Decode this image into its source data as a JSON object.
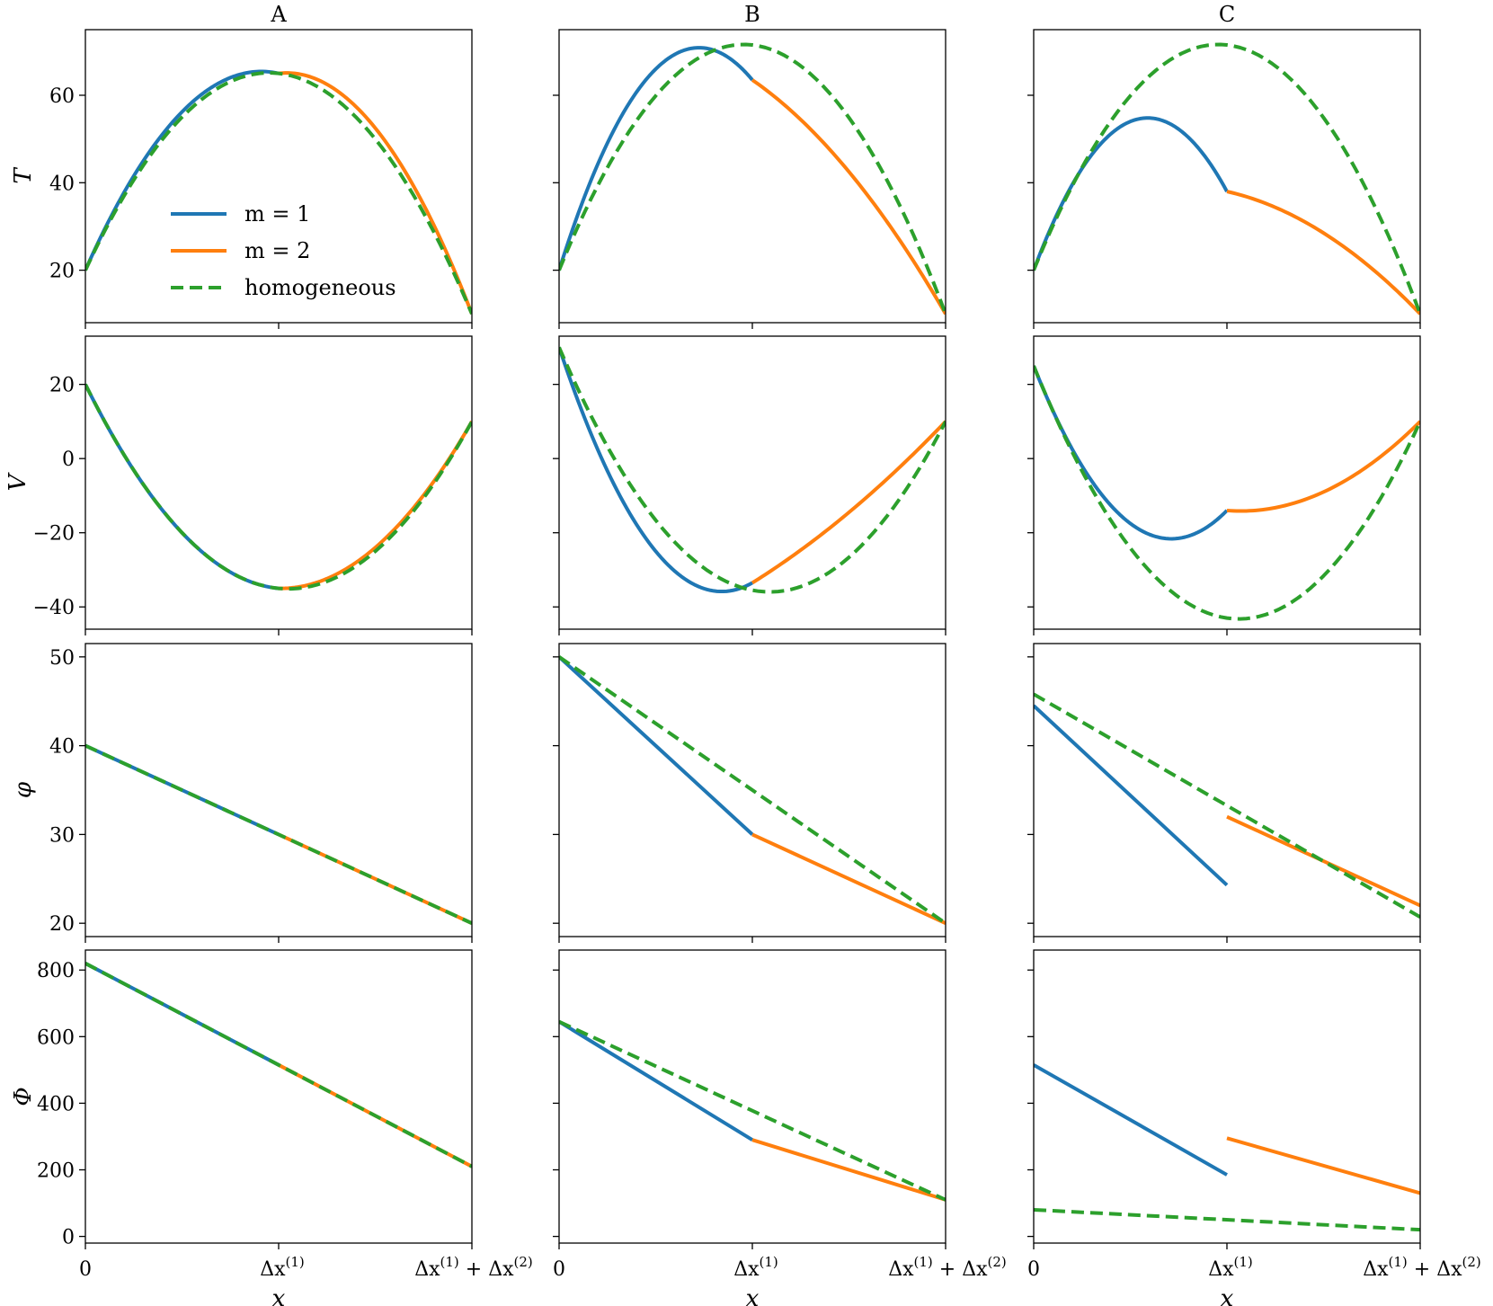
{
  "colors": {
    "m1": "#1f77b4",
    "m2": "#ff7f0e",
    "homogeneous": "#2ca02c"
  },
  "columns": [
    "A",
    "B",
    "C"
  ],
  "x_tick_labels": {
    "zero": "0",
    "mid_base": "Δx",
    "mid_sup": "(1)",
    "end_base1": "Δx",
    "end_sup1": "(1)",
    "end_plus": " + Δx",
    "end_sup2": "(2)"
  },
  "xlabel": "x",
  "legend": {
    "placement": "upper-left inside panel A-T",
    "entries": [
      {
        "label": "m = 1",
        "series": "m1",
        "style": "solid"
      },
      {
        "label": "m = 2",
        "series": "m2",
        "style": "solid"
      },
      {
        "label": "homogeneous",
        "series": "homogeneous",
        "style": "dashed"
      }
    ]
  },
  "chart_data": {
    "type": "line",
    "grid": false,
    "x_domain": [
      0,
      2
    ],
    "x_ticks": [
      0,
      1,
      2
    ],
    "rows": [
      {
        "ylabel": "T",
        "ylim": [
          8,
          75
        ],
        "yticks": [
          20,
          40,
          60
        ],
        "panels": [
          {
            "column": "A",
            "m1": {
              "kind": "quad",
              "x": [
                0,
                1
              ],
              "y0": 20,
              "y1": 65,
              "ymid": 56.2
            },
            "m2": {
              "kind": "quad",
              "x": [
                1,
                2
              ],
              "y0": 65,
              "y1": 10,
              "ymid": 52.5
            },
            "homogeneous": {
              "kind": "quad",
              "x": [
                0,
                2
              ],
              "y0": 20,
              "y1": 10,
              "ymid": 65
            }
          },
          {
            "column": "B",
            "m1": {
              "kind": "quad",
              "x": [
                0,
                1
              ],
              "y0": 20,
              "y1": 63.5,
              "ymid": 66
            },
            "m2": {
              "kind": "quad",
              "x": [
                1,
                2
              ],
              "y0": 63.5,
              "y1": 10,
              "ymid": 42.5
            },
            "homogeneous": {
              "kind": "quad",
              "x": [
                0,
                2
              ],
              "y0": 20,
              "y1": 10,
              "ymid": 71.5
            }
          },
          {
            "column": "C",
            "m1": {
              "kind": "quad",
              "x": [
                0,
                1
              ],
              "y0": 20,
              "y1": 38,
              "ymid": 54
            },
            "m2": {
              "kind": "quad",
              "x": [
                1,
                2
              ],
              "y0": 38,
              "y1": 10,
              "ymid": 28.5
            },
            "homogeneous": {
              "kind": "quad",
              "x": [
                0,
                2
              ],
              "y0": 20,
              "y1": 10,
              "ymid": 71.5
            }
          }
        ]
      },
      {
        "ylabel": "V",
        "ylim": [
          -46,
          33
        ],
        "yticks": [
          -40,
          -20,
          0,
          20
        ],
        "panels": [
          {
            "column": "A",
            "m1": {
              "kind": "quad",
              "x": [
                0,
                1
              ],
              "y0": 20,
              "y1": -35,
              "ymid": -20
            },
            "m2": {
              "kind": "quad",
              "x": [
                1,
                2
              ],
              "y0": -35,
              "y1": 10,
              "ymid": -24
            },
            "homogeneous": {
              "kind": "quad",
              "x": [
                0,
                2
              ],
              "y0": 20,
              "y1": 10,
              "ymid": -35
            }
          },
          {
            "column": "B",
            "m1": {
              "kind": "quad",
              "x": [
                0,
                1
              ],
              "y0": 30,
              "y1": -33.5,
              "ymid": -25
            },
            "m2": {
              "kind": "quad",
              "x": [
                1,
                2
              ],
              "y0": -33.5,
              "y1": 10,
              "ymid": -14.5
            },
            "homogeneous": {
              "kind": "quad",
              "x": [
                0,
                2
              ],
              "y0": 30,
              "y1": 10,
              "ymid": -35.5
            }
          },
          {
            "column": "C",
            "m1": {
              "kind": "quad",
              "x": [
                0,
                1
              ],
              "y0": 25,
              "y1": -14,
              "ymid": -17.5
            },
            "m2": {
              "kind": "quad",
              "x": [
                1,
                2
              ],
              "y0": -14,
              "y1": 10,
              "ymid": -9
            },
            "homogeneous": {
              "kind": "quad",
              "x": [
                0,
                2
              ],
              "y0": 25,
              "y1": 10,
              "ymid": -43
            }
          }
        ]
      },
      {
        "ylabel": "φ",
        "ylim": [
          18.5,
          51.5
        ],
        "yticks": [
          20,
          30,
          40,
          50
        ],
        "panels": [
          {
            "column": "A",
            "m1": {
              "kind": "line",
              "x": [
                0,
                1
              ],
              "y0": 40,
              "y1": 30
            },
            "m2": {
              "kind": "line",
              "x": [
                1,
                2
              ],
              "y0": 30,
              "y1": 20
            },
            "homogeneous": {
              "kind": "line",
              "x": [
                0,
                2
              ],
              "y0": 40,
              "y1": 20
            }
          },
          {
            "column": "B",
            "m1": {
              "kind": "line",
              "x": [
                0,
                1
              ],
              "y0": 50,
              "y1": 30
            },
            "m2": {
              "kind": "line",
              "x": [
                1,
                2
              ],
              "y0": 30,
              "y1": 20
            },
            "homogeneous": {
              "kind": "line",
              "x": [
                0,
                2
              ],
              "y0": 50,
              "y1": 20
            }
          },
          {
            "column": "C",
            "m1": {
              "kind": "line",
              "x": [
                0,
                1
              ],
              "y0": 44.5,
              "y1": 24.3
            },
            "m2": {
              "kind": "line",
              "x": [
                1,
                2
              ],
              "y0": 32,
              "y1": 22
            },
            "homogeneous": {
              "kind": "line",
              "x": [
                0,
                2
              ],
              "y0": 45.8,
              "y1": 20.7
            }
          }
        ]
      },
      {
        "ylabel": "Φ",
        "ylim": [
          -20,
          860
        ],
        "yticks": [
          0,
          200,
          400,
          600,
          800
        ],
        "panels": [
          {
            "column": "A",
            "m1": {
              "kind": "line",
              "x": [
                0,
                1
              ],
              "y0": 820,
              "y1": 515
            },
            "m2": {
              "kind": "line",
              "x": [
                1,
                2
              ],
              "y0": 515,
              "y1": 210
            },
            "homogeneous": {
              "kind": "line",
              "x": [
                0,
                2
              ],
              "y0": 820,
              "y1": 210
            }
          },
          {
            "column": "B",
            "m1": {
              "kind": "line",
              "x": [
                0,
                1
              ],
              "y0": 645,
              "y1": 290
            },
            "m2": {
              "kind": "line",
              "x": [
                1,
                2
              ],
              "y0": 290,
              "y1": 110
            },
            "homogeneous": {
              "kind": "line",
              "x": [
                0,
                2
              ],
              "y0": 645,
              "y1": 110
            }
          },
          {
            "column": "C",
            "m1": {
              "kind": "line",
              "x": [
                0,
                1
              ],
              "y0": 515,
              "y1": 185
            },
            "m2": {
              "kind": "line",
              "x": [
                1,
                2
              ],
              "y0": 295,
              "y1": 130
            },
            "homogeneous": {
              "kind": "line",
              "x": [
                0,
                2
              ],
              "y0": 80,
              "y1": 20
            }
          }
        ]
      }
    ]
  }
}
